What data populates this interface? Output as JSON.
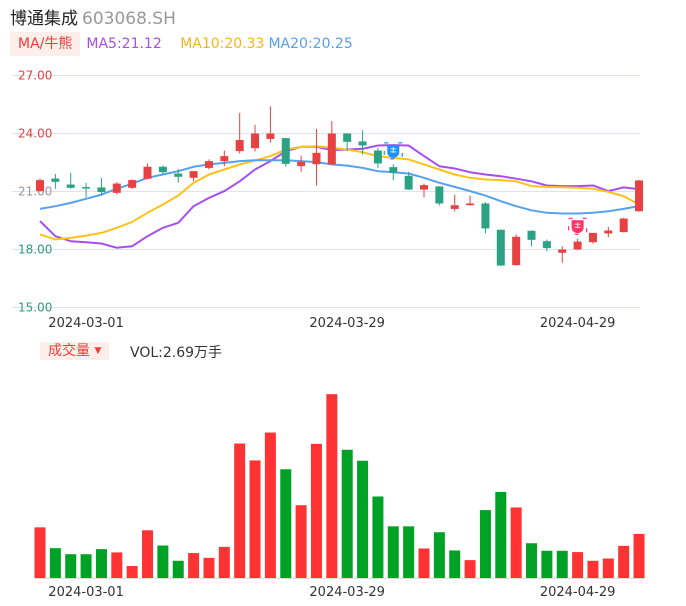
{
  "header": {
    "name": "博通集成",
    "code": "603068.SH"
  },
  "ma_legend": {
    "selector_label": "MA/牛熊",
    "ma5": "MA5:21.12",
    "ma10": "MA10:20.33",
    "ma20": "MA20:20.25"
  },
  "volume_legend": {
    "selector_label": "成交量",
    "dropdown_icon": "caret-down",
    "value": "VOL:2.69万手"
  },
  "colors": {
    "up": "#e84142",
    "down": "#2ba283",
    "vol_up": "#ff3333",
    "vol_down": "#00a225",
    "ma5": "#a64ff0",
    "ma10": "#fcc21b",
    "ma20": "#56a1f0",
    "grid": "#dde3f0"
  },
  "chart_data": [
    {
      "type": "candlestick",
      "ylim": [
        15,
        27
      ],
      "yticks": [
        {
          "value": 27,
          "label": "27.00",
          "color": "#e84040"
        },
        {
          "value": 24,
          "label": "24.00",
          "color": "#e84040"
        },
        {
          "value": 21,
          "label": "21.00",
          "color": "#999999"
        },
        {
          "value": 18,
          "label": "18.00",
          "color": "#2a9d7c"
        },
        {
          "value": 15,
          "label": "15.00",
          "color": "#2a9d7c"
        }
      ],
      "xticks": [
        {
          "index": 3,
          "label": "2024-03-01"
        },
        {
          "index": 20,
          "label": "2024-03-29"
        },
        {
          "index": 35,
          "label": "2024-04-29"
        }
      ],
      "grid": true,
      "ohlc": [
        [
          21.02,
          21.67,
          21.0,
          21.59
        ],
        [
          21.67,
          21.91,
          21.14,
          21.5
        ],
        [
          21.36,
          21.97,
          21.14,
          21.19
        ],
        [
          21.23,
          21.45,
          20.7,
          21.21
        ],
        [
          21.21,
          21.71,
          20.79,
          20.97
        ],
        [
          20.93,
          21.48,
          20.84,
          21.41
        ],
        [
          21.19,
          21.62,
          21.14,
          21.59
        ],
        [
          21.66,
          22.45,
          21.62,
          22.28
        ],
        [
          22.28,
          22.34,
          21.88,
          22.0
        ],
        [
          21.93,
          22.17,
          21.45,
          21.76
        ],
        [
          21.71,
          22.07,
          21.53,
          22.05
        ],
        [
          22.22,
          22.66,
          22.14,
          22.57
        ],
        [
          22.57,
          23.12,
          22.31,
          22.83
        ],
        [
          23.09,
          25.07,
          22.97,
          23.66
        ],
        [
          23.24,
          24.45,
          23.07,
          24.0
        ],
        [
          23.72,
          25.4,
          23.52,
          24.0
        ],
        [
          23.76,
          23.78,
          22.28,
          22.43
        ],
        [
          22.31,
          22.86,
          22.02,
          22.53
        ],
        [
          22.41,
          24.24,
          21.31,
          23.0
        ],
        [
          22.4,
          24.64,
          22.38,
          24.0
        ],
        [
          24.0,
          24.02,
          23.09,
          23.57
        ],
        [
          23.59,
          24.16,
          22.91,
          23.38
        ],
        [
          23.12,
          23.26,
          22.22,
          22.45
        ],
        [
          22.26,
          22.4,
          21.59,
          21.97
        ],
        [
          21.81,
          22.02,
          21.08,
          21.1
        ],
        [
          21.1,
          21.41,
          20.71,
          21.33
        ],
        [
          21.26,
          21.28,
          20.28,
          20.38
        ],
        [
          20.1,
          20.84,
          19.98,
          20.29
        ],
        [
          20.29,
          20.79,
          20.27,
          20.38
        ],
        [
          20.38,
          20.45,
          18.83,
          19.09
        ],
        [
          19.02,
          19.04,
          17.15,
          17.17
        ],
        [
          17.19,
          18.78,
          17.17,
          18.66
        ],
        [
          18.97,
          18.99,
          18.17,
          18.5
        ],
        [
          18.43,
          18.52,
          17.91,
          18.07
        ],
        [
          17.83,
          18.17,
          17.31,
          18.0
        ],
        [
          18.0,
          18.55,
          17.98,
          18.41
        ],
        [
          18.38,
          18.86,
          18.31,
          18.86
        ],
        [
          18.83,
          19.16,
          18.64,
          18.98
        ],
        [
          18.9,
          19.64,
          18.88,
          19.6
        ],
        [
          19.98,
          21.6,
          19.96,
          21.57
        ]
      ],
      "series": [
        {
          "name": "MA5",
          "values": [
            19.47,
            18.69,
            18.43,
            18.38,
            18.31,
            18.09,
            18.17,
            18.69,
            19.12,
            19.38,
            20.24,
            20.67,
            21.02,
            21.53,
            22.14,
            22.57,
            23.09,
            23.31,
            23.31,
            23.14,
            23.17,
            23.21,
            23.38,
            23.4,
            23.38,
            22.83,
            22.31,
            22.19,
            22.0,
            21.88,
            21.79,
            21.66,
            21.53,
            21.31,
            21.28,
            21.28,
            21.31,
            21.02,
            21.21,
            21.12
          ]
        },
        {
          "name": "MA10",
          "values": [
            18.78,
            18.52,
            18.6,
            18.72,
            18.86,
            19.12,
            19.43,
            19.9,
            20.33,
            20.79,
            21.45,
            21.88,
            22.14,
            22.4,
            22.6,
            22.83,
            23.17,
            23.31,
            23.34,
            23.26,
            23.17,
            23.03,
            22.83,
            22.74,
            22.66,
            22.4,
            22.14,
            21.88,
            21.71,
            21.62,
            21.59,
            21.53,
            21.28,
            21.24,
            21.22,
            21.19,
            21.14,
            20.98,
            20.76,
            20.33
          ]
        },
        {
          "name": "MA20",
          "values": [
            20.1,
            20.24,
            20.41,
            20.62,
            20.84,
            21.14,
            21.41,
            21.71,
            21.88,
            22.05,
            22.28,
            22.4,
            22.48,
            22.57,
            22.62,
            22.62,
            22.62,
            22.57,
            22.52,
            22.4,
            22.34,
            22.22,
            22.05,
            22.0,
            21.93,
            21.71,
            21.45,
            21.24,
            21.02,
            20.79,
            20.5,
            20.24,
            20.03,
            19.9,
            19.86,
            19.86,
            19.9,
            19.98,
            20.1,
            20.25
          ]
        }
      ],
      "markers": [
        {
          "index": 23,
          "type": "bear",
          "icon": "bear-marker",
          "color": "#1e90ff",
          "price": 23.1
        },
        {
          "index": 35,
          "type": "bull",
          "icon": "bull-marker",
          "color": "#ff3366",
          "price": 19.2
        }
      ]
    },
    {
      "type": "bar",
      "unit": "万手",
      "xticks": [
        {
          "index": 3,
          "label": "2024-03-01"
        },
        {
          "index": 20,
          "label": "2024-03-29"
        },
        {
          "index": 35,
          "label": "2024-04-29"
        }
      ],
      "values": [
        3.09,
        1.82,
        1.45,
        1.45,
        1.76,
        1.56,
        0.73,
        2.91,
        1.98,
        1.05,
        1.52,
        1.23,
        1.9,
        8.2,
        7.17,
        8.87,
        6.63,
        4.44,
        8.18,
        11.21,
        7.82,
        7.15,
        4.97,
        3.15,
        3.15,
        1.8,
        2.79,
        1.68,
        1.09,
        4.14,
        5.25,
        4.3,
        2.12,
        1.66,
        1.66,
        1.58,
        1.05,
        1.19,
        1.96,
        2.69
      ],
      "direction": [
        "up",
        "down",
        "down",
        "down",
        "down",
        "up",
        "up",
        "up",
        "down",
        "down",
        "up",
        "up",
        "up",
        "up",
        "up",
        "up",
        "down",
        "up",
        "up",
        "up",
        "down",
        "down",
        "down",
        "down",
        "down",
        "up",
        "down",
        "down",
        "up",
        "down",
        "down",
        "up",
        "down",
        "down",
        "down",
        "up",
        "up",
        "up",
        "up",
        "up"
      ]
    }
  ]
}
